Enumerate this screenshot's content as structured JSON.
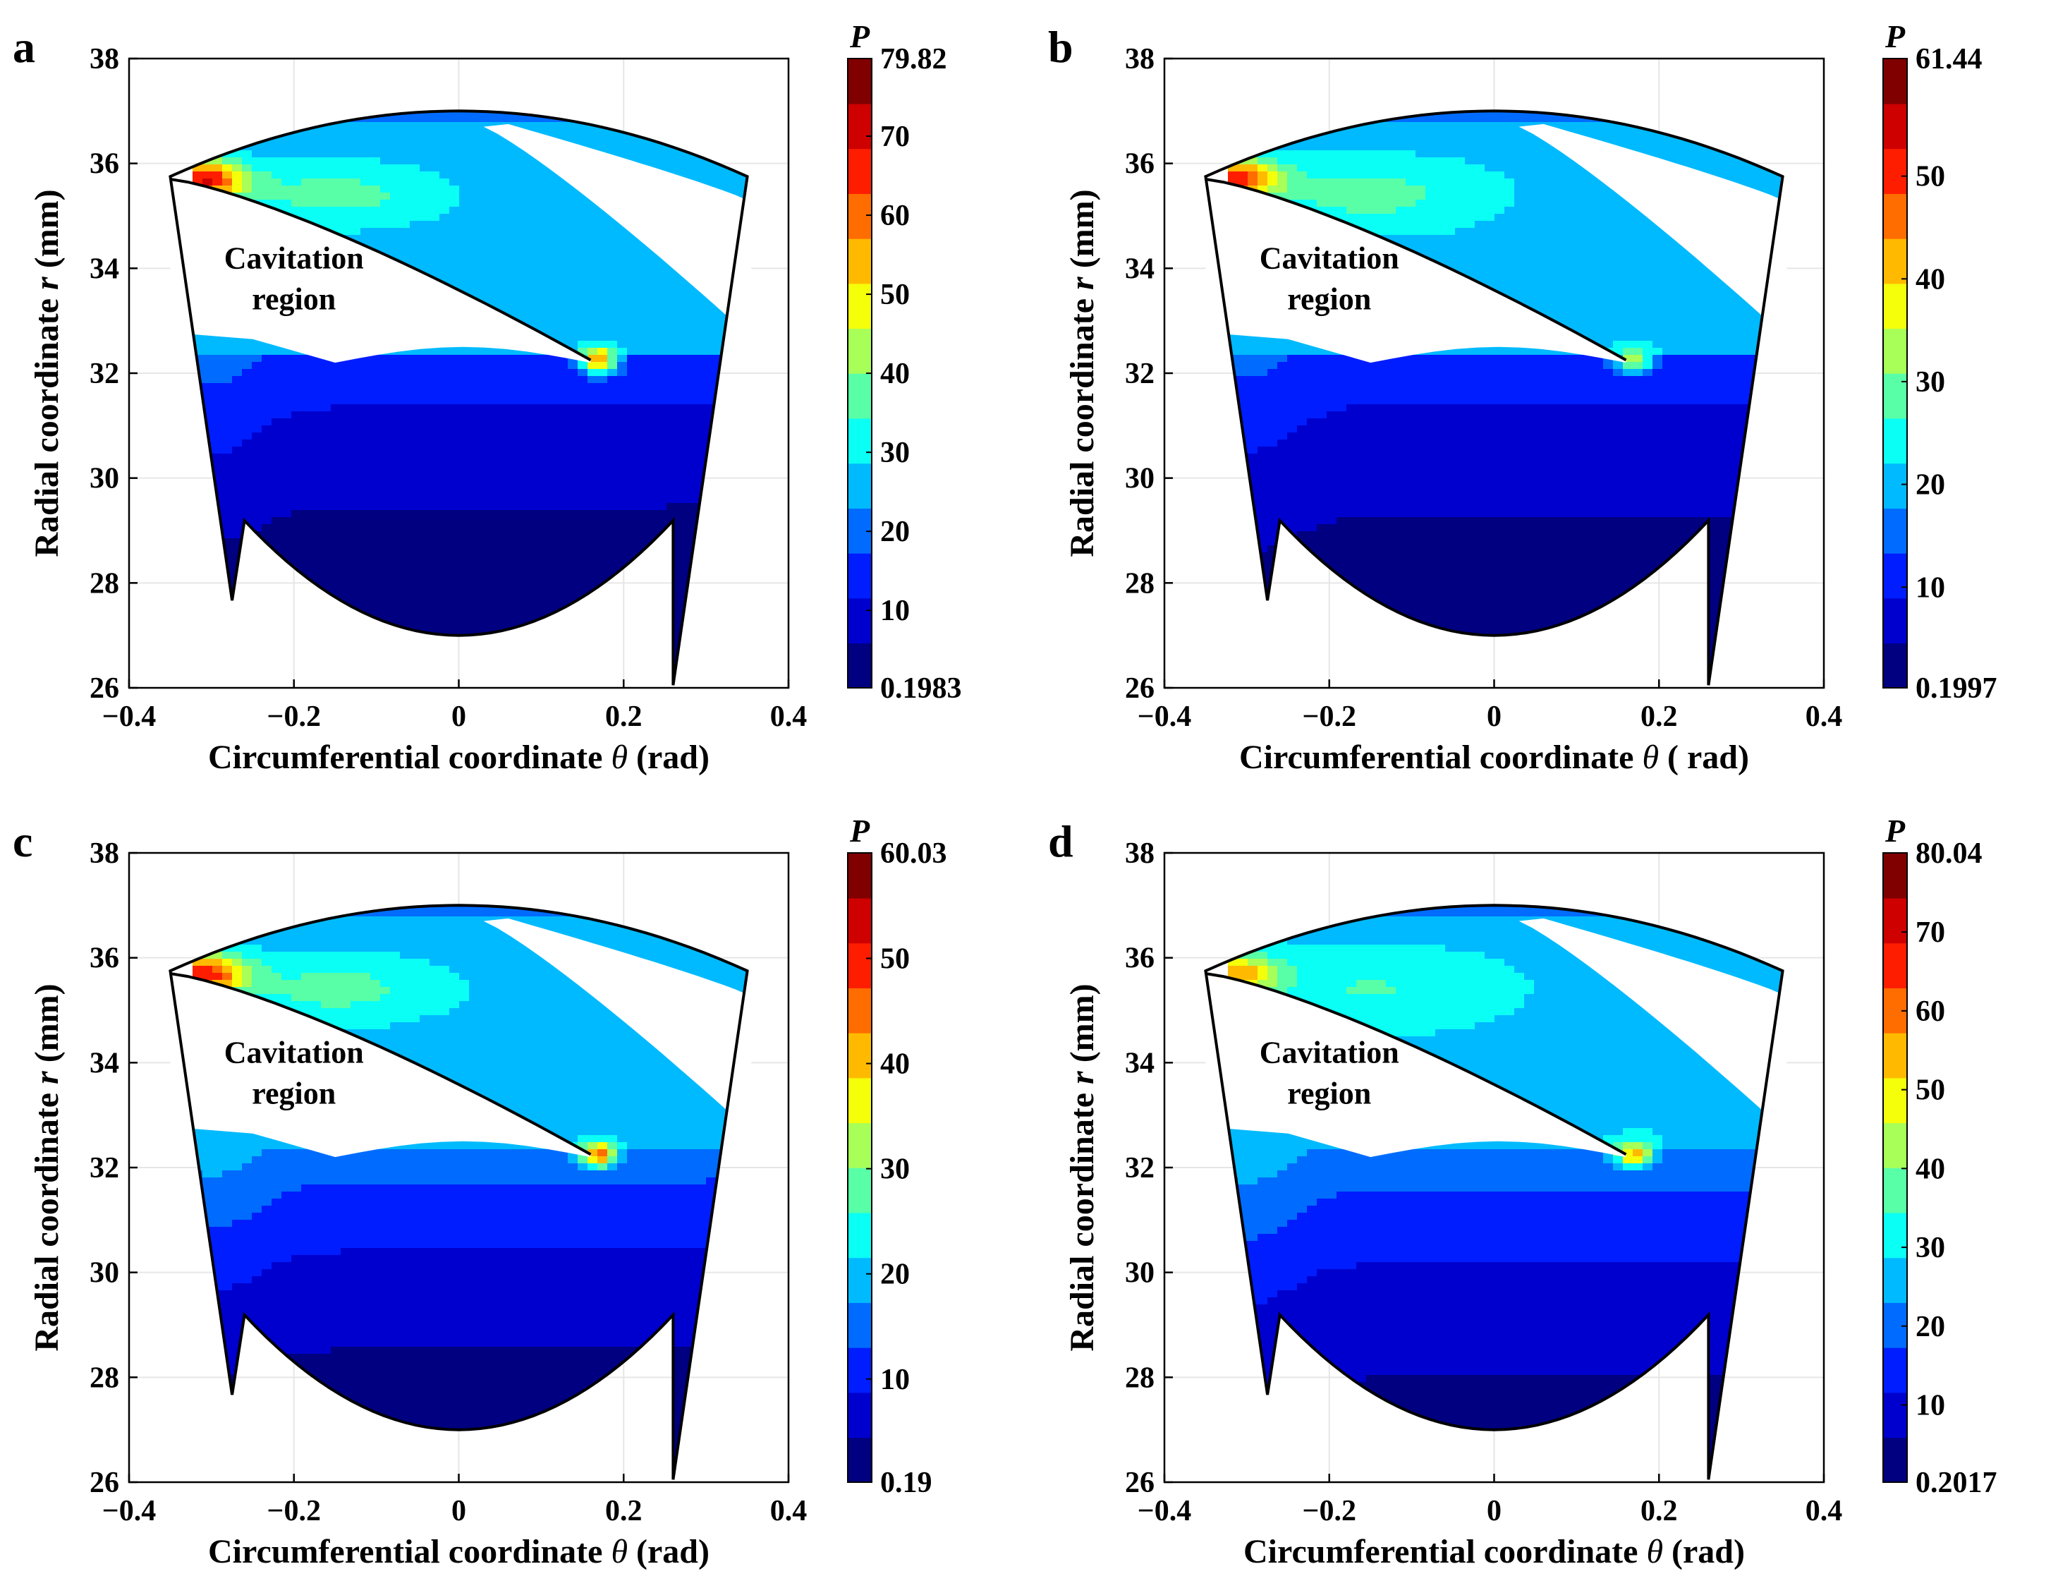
{
  "chart_data": [
    {
      "type": "contour",
      "panel_label": "a",
      "xlabel_prefix": "Circumferential coordinate ",
      "xlabel_symbol": "θ",
      "xlabel_suffix": " (rad)",
      "ylabel_prefix": "Radial coordinate ",
      "ylabel_symbol": "r",
      "ylabel_suffix": " (mm)",
      "xlim": [
        -0.4,
        0.4
      ],
      "ylim": [
        26,
        38
      ],
      "xticks": [
        "−0.4",
        "−0.2",
        "0",
        "0.2",
        "0.4"
      ],
      "yticks": [
        "26",
        "28",
        "30",
        "32",
        "34",
        "36",
        "38"
      ],
      "grid": true,
      "annotation": [
        "Cavitation",
        "region"
      ],
      "colorbar": {
        "title": "P",
        "min": "0.1983",
        "max": "79.82",
        "ticks": [
          "10",
          "20",
          "30",
          "40",
          "50",
          "60",
          "70"
        ],
        "vmin": 0.1983,
        "vmax": 79.82
      },
      "field_levels": {
        "inner_low": 2.5,
        "inner_high": 16,
        "upper_band": 26,
        "cavity_peak": 68,
        "hotspot": 58
      }
    },
    {
      "type": "contour",
      "panel_label": "b",
      "xlabel_prefix": "Circumferential coordinate ",
      "xlabel_symbol": "θ",
      "xlabel_suffix": " ( rad)",
      "ylabel_prefix": "Radial coordinate ",
      "ylabel_symbol": "r",
      "ylabel_suffix": " (mm)",
      "xlim": [
        -0.4,
        0.4
      ],
      "ylim": [
        26,
        38
      ],
      "xticks": [
        "−0.4",
        "−0.2",
        "0",
        "0.2",
        "0.4"
      ],
      "yticks": [
        "26",
        "28",
        "30",
        "32",
        "34",
        "36",
        "38"
      ],
      "grid": true,
      "annotation": [
        "Cavitation",
        "region"
      ],
      "colorbar": {
        "title": "P",
        "min": "0.1997",
        "max": "61.44",
        "ticks": [
          "10",
          "20",
          "30",
          "40",
          "50"
        ],
        "vmin": 0.1997,
        "vmax": 61.44
      },
      "field_levels": {
        "inner_low": 2.5,
        "inner_high": 12,
        "upper_band": 21,
        "cavity_peak": 50,
        "hotspot": 35
      }
    },
    {
      "type": "contour",
      "panel_label": "c",
      "xlabel_prefix": "Circumferential coordinate ",
      "xlabel_symbol": "θ",
      "xlabel_suffix": " (rad)",
      "ylabel_prefix": "Radial coordinate ",
      "ylabel_symbol": "r",
      "ylabel_suffix": " (mm)",
      "xlim": [
        -0.4,
        0.4
      ],
      "ylim": [
        26,
        38
      ],
      "xticks": [
        "−0.4",
        "−0.2",
        "0",
        "0.2",
        "0.4"
      ],
      "yticks": [
        "26",
        "28",
        "30",
        "32",
        "34",
        "36",
        "38"
      ],
      "grid": true,
      "annotation": [
        "Cavitation",
        "region"
      ],
      "colorbar": {
        "title": "P",
        "min": "0.19",
        "max": "60.03",
        "ticks": [
          "10",
          "20",
          "30",
          "40",
          "50"
        ],
        "vmin": 0.19,
        "vmax": 60.03
      },
      "field_levels": {
        "inner_low": 3,
        "inner_high": 16,
        "upper_band": 20,
        "cavity_peak": 50,
        "hotspot": 45
      }
    },
    {
      "type": "contour",
      "panel_label": "d",
      "xlabel_prefix": "Circumferential coordinate ",
      "xlabel_symbol": "θ",
      "xlabel_suffix": " (rad)",
      "ylabel_prefix": "Radial coordinate ",
      "ylabel_symbol": "r",
      "ylabel_suffix": " (mm)",
      "xlim": [
        -0.4,
        0.4
      ],
      "ylim": [
        26,
        38
      ],
      "xticks": [
        "−0.4",
        "−0.2",
        "0",
        "0.2",
        "0.4"
      ],
      "yticks": [
        "26",
        "28",
        "30",
        "32",
        "34",
        "36",
        "38"
      ],
      "grid": true,
      "annotation": [
        "Cavitation",
        "region"
      ],
      "colorbar": {
        "title": "P",
        "min": "0.2017",
        "max": "80.04",
        "ticks": [
          "10",
          "20",
          "30",
          "40",
          "50",
          "60",
          "70"
        ],
        "vmin": 0.2017,
        "vmax": 80.04
      },
      "field_levels": {
        "inner_low": 5,
        "inner_high": 22,
        "upper_band": 28,
        "cavity_peak": 55,
        "hotspot": 55
      }
    }
  ],
  "colors": {
    "outline": "#000000",
    "grid": "#e6e6e6",
    "cavity": "#ffffff"
  }
}
